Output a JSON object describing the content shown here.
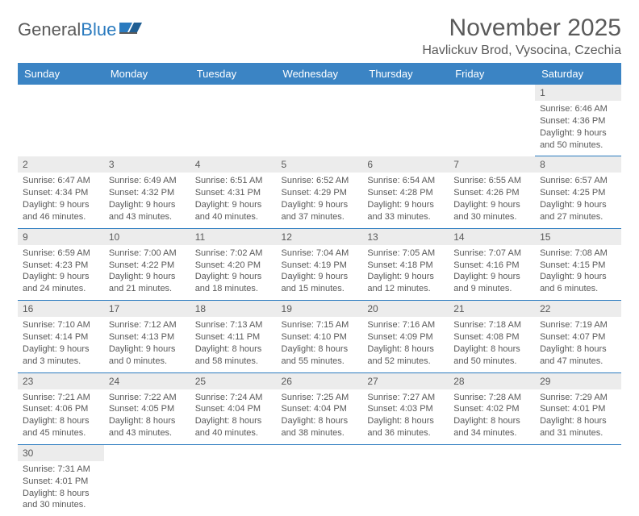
{
  "brand": {
    "word1": "General",
    "word2": "Blue"
  },
  "title": "November 2025",
  "location": "Havlickuv Brod, Vysocina, Czechia",
  "colors": {
    "header_bg": "#3b84c4",
    "header_text": "#ffffff",
    "daynum_bg": "#ececec",
    "cell_text": "#595959",
    "row_divider": "#2b7bbf",
    "brand_gray": "#5a5a5a",
    "brand_blue": "#2b7bbf",
    "page_bg": "#ffffff"
  },
  "typography": {
    "title_fontsize": 30,
    "location_fontsize": 16,
    "header_fontsize": 13,
    "daynum_fontsize": 12,
    "detail_fontsize": 11
  },
  "day_names": [
    "Sunday",
    "Monday",
    "Tuesday",
    "Wednesday",
    "Thursday",
    "Friday",
    "Saturday"
  ],
  "weeks": [
    {
      "nums": [
        "",
        "",
        "",
        "",
        "",
        "",
        "1"
      ],
      "cells": [
        "",
        "",
        "",
        "",
        "",
        "",
        "Sunrise: 6:46 AM\nSunset: 4:36 PM\nDaylight: 9 hours and 50 minutes."
      ]
    },
    {
      "nums": [
        "2",
        "3",
        "4",
        "5",
        "6",
        "7",
        "8"
      ],
      "cells": [
        "Sunrise: 6:47 AM\nSunset: 4:34 PM\nDaylight: 9 hours and 46 minutes.",
        "Sunrise: 6:49 AM\nSunset: 4:32 PM\nDaylight: 9 hours and 43 minutes.",
        "Sunrise: 6:51 AM\nSunset: 4:31 PM\nDaylight: 9 hours and 40 minutes.",
        "Sunrise: 6:52 AM\nSunset: 4:29 PM\nDaylight: 9 hours and 37 minutes.",
        "Sunrise: 6:54 AM\nSunset: 4:28 PM\nDaylight: 9 hours and 33 minutes.",
        "Sunrise: 6:55 AM\nSunset: 4:26 PM\nDaylight: 9 hours and 30 minutes.",
        "Sunrise: 6:57 AM\nSunset: 4:25 PM\nDaylight: 9 hours and 27 minutes."
      ]
    },
    {
      "nums": [
        "9",
        "10",
        "11",
        "12",
        "13",
        "14",
        "15"
      ],
      "cells": [
        "Sunrise: 6:59 AM\nSunset: 4:23 PM\nDaylight: 9 hours and 24 minutes.",
        "Sunrise: 7:00 AM\nSunset: 4:22 PM\nDaylight: 9 hours and 21 minutes.",
        "Sunrise: 7:02 AM\nSunset: 4:20 PM\nDaylight: 9 hours and 18 minutes.",
        "Sunrise: 7:04 AM\nSunset: 4:19 PM\nDaylight: 9 hours and 15 minutes.",
        "Sunrise: 7:05 AM\nSunset: 4:18 PM\nDaylight: 9 hours and 12 minutes.",
        "Sunrise: 7:07 AM\nSunset: 4:16 PM\nDaylight: 9 hours and 9 minutes.",
        "Sunrise: 7:08 AM\nSunset: 4:15 PM\nDaylight: 9 hours and 6 minutes."
      ]
    },
    {
      "nums": [
        "16",
        "17",
        "18",
        "19",
        "20",
        "21",
        "22"
      ],
      "cells": [
        "Sunrise: 7:10 AM\nSunset: 4:14 PM\nDaylight: 9 hours and 3 minutes.",
        "Sunrise: 7:12 AM\nSunset: 4:13 PM\nDaylight: 9 hours and 0 minutes.",
        "Sunrise: 7:13 AM\nSunset: 4:11 PM\nDaylight: 8 hours and 58 minutes.",
        "Sunrise: 7:15 AM\nSunset: 4:10 PM\nDaylight: 8 hours and 55 minutes.",
        "Sunrise: 7:16 AM\nSunset: 4:09 PM\nDaylight: 8 hours and 52 minutes.",
        "Sunrise: 7:18 AM\nSunset: 4:08 PM\nDaylight: 8 hours and 50 minutes.",
        "Sunrise: 7:19 AM\nSunset: 4:07 PM\nDaylight: 8 hours and 47 minutes."
      ]
    },
    {
      "nums": [
        "23",
        "24",
        "25",
        "26",
        "27",
        "28",
        "29"
      ],
      "cells": [
        "Sunrise: 7:21 AM\nSunset: 4:06 PM\nDaylight: 8 hours and 45 minutes.",
        "Sunrise: 7:22 AM\nSunset: 4:05 PM\nDaylight: 8 hours and 43 minutes.",
        "Sunrise: 7:24 AM\nSunset: 4:04 PM\nDaylight: 8 hours and 40 minutes.",
        "Sunrise: 7:25 AM\nSunset: 4:04 PM\nDaylight: 8 hours and 38 minutes.",
        "Sunrise: 7:27 AM\nSunset: 4:03 PM\nDaylight: 8 hours and 36 minutes.",
        "Sunrise: 7:28 AM\nSunset: 4:02 PM\nDaylight: 8 hours and 34 minutes.",
        "Sunrise: 7:29 AM\nSunset: 4:01 PM\nDaylight: 8 hours and 31 minutes."
      ]
    },
    {
      "nums": [
        "30",
        "",
        "",
        "",
        "",
        "",
        ""
      ],
      "cells": [
        "Sunrise: 7:31 AM\nSunset: 4:01 PM\nDaylight: 8 hours and 30 minutes.",
        "",
        "",
        "",
        "",
        "",
        ""
      ]
    }
  ]
}
